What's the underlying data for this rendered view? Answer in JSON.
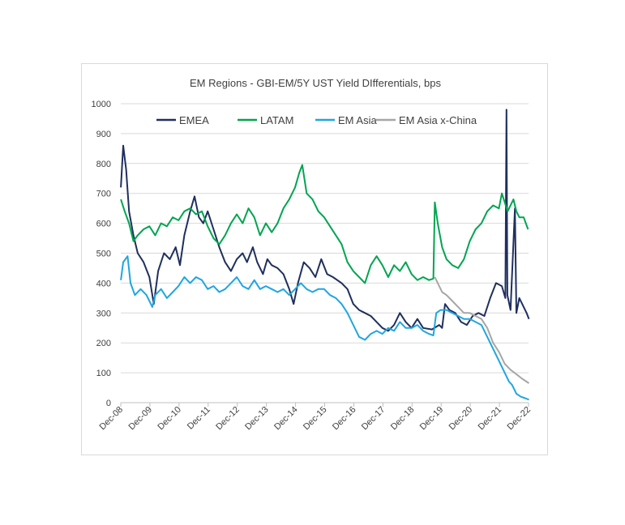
{
  "chart_data": {
    "type": "line",
    "title": "EM Regions - GBI-EM/5Y UST Yield DIfferentials, bps",
    "xlabel": "",
    "ylabel": "",
    "ylim": [
      0,
      1000
    ],
    "yticks": [
      0,
      100,
      200,
      300,
      400,
      500,
      600,
      700,
      800,
      900,
      1000
    ],
    "xlim": [
      2008.917,
      2022.917
    ],
    "xticks": [
      {
        "label": "Dec-08",
        "x": 2008.917
      },
      {
        "label": "Dec-09",
        "x": 2009.917
      },
      {
        "label": "Dec-10",
        "x": 2010.917
      },
      {
        "label": "Dec-11",
        "x": 2011.917
      },
      {
        "label": "Dec-12",
        "x": 2012.917
      },
      {
        "label": "Dec-13",
        "x": 2013.917
      },
      {
        "label": "Dec-14",
        "x": 2014.917
      },
      {
        "label": "Dec-15",
        "x": 2015.917
      },
      {
        "label": "Dec-16",
        "x": 2016.917
      },
      {
        "label": "Dec-17",
        "x": 2017.917
      },
      {
        "label": "Dec-18",
        "x": 2018.917
      },
      {
        "label": "Dec-19",
        "x": 2019.917
      },
      {
        "label": "Dec-20",
        "x": 2020.917
      },
      {
        "label": "Dec-21",
        "x": 2021.917
      },
      {
        "label": "Dec-22",
        "x": 2022.917
      }
    ],
    "grid": true,
    "legend_position": "top",
    "series": [
      {
        "name": "EMEA",
        "color": "#1f2f5e",
        "points": [
          [
            2008.92,
            720
          ],
          [
            2009.0,
            860
          ],
          [
            2009.1,
            780
          ],
          [
            2009.2,
            640
          ],
          [
            2009.35,
            560
          ],
          [
            2009.5,
            500
          ],
          [
            2009.7,
            470
          ],
          [
            2009.9,
            420
          ],
          [
            2010.05,
            330
          ],
          [
            2010.2,
            440
          ],
          [
            2010.4,
            500
          ],
          [
            2010.6,
            480
          ],
          [
            2010.8,
            520
          ],
          [
            2010.95,
            460
          ],
          [
            2011.1,
            560
          ],
          [
            2011.3,
            640
          ],
          [
            2011.45,
            690
          ],
          [
            2011.6,
            620
          ],
          [
            2011.75,
            600
          ],
          [
            2011.9,
            640
          ],
          [
            2012.1,
            580
          ],
          [
            2012.3,
            520
          ],
          [
            2012.5,
            470
          ],
          [
            2012.7,
            440
          ],
          [
            2012.9,
            480
          ],
          [
            2013.1,
            500
          ],
          [
            2013.25,
            470
          ],
          [
            2013.45,
            520
          ],
          [
            2013.6,
            470
          ],
          [
            2013.8,
            430
          ],
          [
            2013.95,
            480
          ],
          [
            2014.1,
            460
          ],
          [
            2014.3,
            450
          ],
          [
            2014.5,
            430
          ],
          [
            2014.7,
            380
          ],
          [
            2014.85,
            330
          ],
          [
            2015.0,
            400
          ],
          [
            2015.2,
            470
          ],
          [
            2015.4,
            450
          ],
          [
            2015.6,
            420
          ],
          [
            2015.8,
            480
          ],
          [
            2016.0,
            430
          ],
          [
            2016.2,
            420
          ],
          [
            2016.5,
            400
          ],
          [
            2016.7,
            380
          ],
          [
            2016.9,
            330
          ],
          [
            2017.1,
            310
          ],
          [
            2017.3,
            300
          ],
          [
            2017.5,
            290
          ],
          [
            2017.7,
            270
          ],
          [
            2017.9,
            250
          ],
          [
            2018.1,
            240
          ],
          [
            2018.3,
            260
          ],
          [
            2018.5,
            300
          ],
          [
            2018.7,
            270
          ],
          [
            2018.9,
            250
          ],
          [
            2019.1,
            280
          ],
          [
            2019.3,
            250
          ],
          [
            2019.6,
            245
          ],
          [
            2019.85,
            260
          ],
          [
            2019.95,
            250
          ],
          [
            2020.05,
            330
          ],
          [
            2020.2,
            310
          ],
          [
            2020.4,
            300
          ],
          [
            2020.6,
            270
          ],
          [
            2020.8,
            260
          ],
          [
            2021.0,
            290
          ],
          [
            2021.2,
            300
          ],
          [
            2021.4,
            290
          ],
          [
            2021.6,
            350
          ],
          [
            2021.8,
            400
          ],
          [
            2022.0,
            390
          ],
          [
            2022.12,
            350
          ],
          [
            2022.16,
            980
          ],
          [
            2022.19,
            360
          ],
          [
            2022.3,
            310
          ],
          [
            2022.45,
            650
          ],
          [
            2022.5,
            300
          ],
          [
            2022.6,
            350
          ],
          [
            2022.7,
            330
          ],
          [
            2022.85,
            300
          ],
          [
            2022.93,
            280
          ]
        ]
      },
      {
        "name": "LATAM",
        "color": "#00a550",
        "points": [
          [
            2008.92,
            680
          ],
          [
            2009.05,
            640
          ],
          [
            2009.2,
            600
          ],
          [
            2009.35,
            540
          ],
          [
            2009.5,
            560
          ],
          [
            2009.7,
            580
          ],
          [
            2009.9,
            590
          ],
          [
            2010.1,
            560
          ],
          [
            2010.3,
            600
          ],
          [
            2010.5,
            590
          ],
          [
            2010.7,
            620
          ],
          [
            2010.9,
            610
          ],
          [
            2011.1,
            640
          ],
          [
            2011.3,
            650
          ],
          [
            2011.5,
            630
          ],
          [
            2011.7,
            640
          ],
          [
            2011.9,
            590
          ],
          [
            2012.1,
            550
          ],
          [
            2012.3,
            530
          ],
          [
            2012.5,
            560
          ],
          [
            2012.7,
            600
          ],
          [
            2012.9,
            630
          ],
          [
            2013.1,
            600
          ],
          [
            2013.3,
            650
          ],
          [
            2013.5,
            620
          ],
          [
            2013.7,
            560
          ],
          [
            2013.9,
            600
          ],
          [
            2014.1,
            570
          ],
          [
            2014.3,
            600
          ],
          [
            2014.5,
            650
          ],
          [
            2014.7,
            680
          ],
          [
            2014.9,
            720
          ],
          [
            2015.05,
            770
          ],
          [
            2015.15,
            795
          ],
          [
            2015.3,
            700
          ],
          [
            2015.5,
            680
          ],
          [
            2015.7,
            640
          ],
          [
            2015.9,
            620
          ],
          [
            2016.1,
            590
          ],
          [
            2016.3,
            560
          ],
          [
            2016.5,
            530
          ],
          [
            2016.7,
            470
          ],
          [
            2016.9,
            440
          ],
          [
            2017.1,
            420
          ],
          [
            2017.3,
            400
          ],
          [
            2017.5,
            460
          ],
          [
            2017.7,
            490
          ],
          [
            2017.9,
            460
          ],
          [
            2018.1,
            420
          ],
          [
            2018.3,
            460
          ],
          [
            2018.5,
            440
          ],
          [
            2018.7,
            470
          ],
          [
            2018.9,
            430
          ],
          [
            2019.1,
            410
          ],
          [
            2019.3,
            420
          ],
          [
            2019.5,
            410
          ],
          [
            2019.65,
            415
          ],
          [
            2019.7,
            670
          ],
          [
            2019.8,
            600
          ],
          [
            2019.95,
            520
          ],
          [
            2020.1,
            480
          ],
          [
            2020.3,
            460
          ],
          [
            2020.5,
            450
          ],
          [
            2020.7,
            480
          ],
          [
            2020.9,
            540
          ],
          [
            2021.1,
            580
          ],
          [
            2021.3,
            600
          ],
          [
            2021.5,
            640
          ],
          [
            2021.7,
            660
          ],
          [
            2021.9,
            650
          ],
          [
            2022.0,
            700
          ],
          [
            2022.2,
            640
          ],
          [
            2022.4,
            680
          ],
          [
            2022.5,
            640
          ],
          [
            2022.6,
            620
          ],
          [
            2022.75,
            620
          ],
          [
            2022.9,
            580
          ]
        ]
      },
      {
        "name": "EM Asia",
        "color": "#1fa6e0",
        "points": [
          [
            2008.92,
            410
          ],
          [
            2009.0,
            470
          ],
          [
            2009.15,
            490
          ],
          [
            2009.25,
            400
          ],
          [
            2009.4,
            360
          ],
          [
            2009.6,
            380
          ],
          [
            2009.8,
            360
          ],
          [
            2010.0,
            320
          ],
          [
            2010.1,
            360
          ],
          [
            2010.3,
            380
          ],
          [
            2010.5,
            350
          ],
          [
            2010.7,
            370
          ],
          [
            2010.9,
            390
          ],
          [
            2011.1,
            420
          ],
          [
            2011.3,
            400
          ],
          [
            2011.5,
            420
          ],
          [
            2011.7,
            410
          ],
          [
            2011.9,
            380
          ],
          [
            2012.1,
            390
          ],
          [
            2012.3,
            370
          ],
          [
            2012.5,
            380
          ],
          [
            2012.7,
            400
          ],
          [
            2012.9,
            420
          ],
          [
            2013.1,
            390
          ],
          [
            2013.3,
            380
          ],
          [
            2013.5,
            410
          ],
          [
            2013.7,
            380
          ],
          [
            2013.9,
            390
          ],
          [
            2014.1,
            380
          ],
          [
            2014.3,
            370
          ],
          [
            2014.5,
            380
          ],
          [
            2014.7,
            360
          ],
          [
            2014.9,
            380
          ],
          [
            2015.1,
            400
          ],
          [
            2015.3,
            380
          ],
          [
            2015.5,
            370
          ],
          [
            2015.7,
            380
          ],
          [
            2015.9,
            380
          ],
          [
            2016.1,
            360
          ],
          [
            2016.3,
            350
          ],
          [
            2016.5,
            330
          ],
          [
            2016.7,
            300
          ],
          [
            2016.9,
            260
          ],
          [
            2017.1,
            220
          ],
          [
            2017.3,
            210
          ],
          [
            2017.5,
            230
          ],
          [
            2017.7,
            240
          ],
          [
            2017.9,
            230
          ],
          [
            2018.1,
            250
          ],
          [
            2018.3,
            240
          ],
          [
            2018.5,
            270
          ],
          [
            2018.7,
            250
          ],
          [
            2018.9,
            250
          ],
          [
            2019.1,
            260
          ],
          [
            2019.3,
            240
          ],
          [
            2019.5,
            230
          ],
          [
            2019.65,
            225
          ],
          [
            2019.75,
            300
          ],
          [
            2019.9,
            310
          ],
          [
            2020.1,
            310
          ],
          [
            2020.3,
            300
          ],
          [
            2020.5,
            290
          ],
          [
            2020.7,
            280
          ],
          [
            2020.9,
            280
          ],
          [
            2021.1,
            270
          ],
          [
            2021.3,
            260
          ],
          [
            2021.5,
            220
          ],
          [
            2021.7,
            180
          ],
          [
            2021.9,
            140
          ],
          [
            2022.1,
            100
          ],
          [
            2022.25,
            70
          ],
          [
            2022.35,
            60
          ],
          [
            2022.5,
            30
          ],
          [
            2022.65,
            20
          ],
          [
            2022.8,
            15
          ],
          [
            2022.93,
            10
          ]
        ]
      },
      {
        "name": "EM Asia x-China",
        "color": "#a6a6a6",
        "points": [
          [
            2019.7,
            420
          ],
          [
            2019.8,
            400
          ],
          [
            2019.95,
            370
          ],
          [
            2020.1,
            360
          ],
          [
            2020.3,
            340
          ],
          [
            2020.5,
            320
          ],
          [
            2020.7,
            300
          ],
          [
            2020.9,
            300
          ],
          [
            2021.1,
            290
          ],
          [
            2021.3,
            280
          ],
          [
            2021.5,
            250
          ],
          [
            2021.7,
            200
          ],
          [
            2021.9,
            170
          ],
          [
            2022.1,
            130
          ],
          [
            2022.3,
            110
          ],
          [
            2022.5,
            95
          ],
          [
            2022.7,
            80
          ],
          [
            2022.93,
            65
          ]
        ]
      }
    ]
  }
}
